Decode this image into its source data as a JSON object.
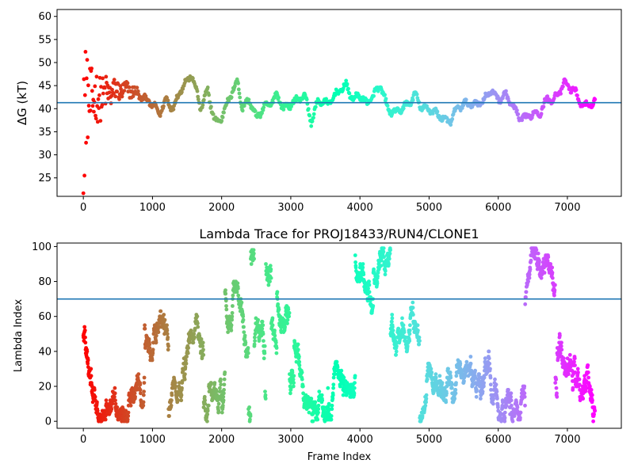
{
  "chart_data": [
    {
      "type": "scatter",
      "title": "",
      "xlabel": "",
      "ylabel": "ΔG (kT)",
      "xlim": [
        -380,
        7780
      ],
      "ylim": [
        21,
        61.5
      ],
      "xticks": [
        0,
        1000,
        2000,
        3000,
        4000,
        5000,
        6000,
        7000
      ],
      "yticks": [
        25,
        30,
        35,
        40,
        45,
        50,
        55,
        60
      ],
      "hline": 41.3,
      "colormap": "rainbow (red → violet over frame index)",
      "n_frames": 7400,
      "trace_anchors": [
        [
          0,
          41
        ],
        [
          150,
          42
        ],
        [
          300,
          43
        ],
        [
          500,
          44
        ],
        [
          700,
          44
        ],
        [
          800,
          43
        ],
        [
          900,
          42
        ],
        [
          1000,
          41
        ],
        [
          1100,
          39
        ],
        [
          1200,
          42
        ],
        [
          1300,
          40
        ],
        [
          1400,
          44
        ],
        [
          1500,
          46
        ],
        [
          1560,
          47.5
        ],
        [
          1650,
          43
        ],
        [
          1700,
          40
        ],
        [
          1800,
          44
        ],
        [
          1900,
          37
        ],
        [
          2000,
          38
        ],
        [
          2100,
          42
        ],
        [
          2200,
          45
        ],
        [
          2230,
          46
        ],
        [
          2300,
          40
        ],
        [
          2400,
          42
        ],
        [
          2500,
          38
        ],
        [
          2600,
          40
        ],
        [
          2700,
          41
        ],
        [
          2800,
          43
        ],
        [
          2900,
          40
        ],
        [
          3000,
          41
        ],
        [
          3100,
          42
        ],
        [
          3200,
          43
        ],
        [
          3300,
          37
        ],
        [
          3400,
          42
        ],
        [
          3500,
          41
        ],
        [
          3600,
          42
        ],
        [
          3700,
          44
        ],
        [
          3800,
          45
        ],
        [
          3900,
          42
        ],
        [
          4000,
          43
        ],
        [
          4100,
          41
        ],
        [
          4200,
          43
        ],
        [
          4300,
          45
        ],
        [
          4400,
          40
        ],
        [
          4500,
          39
        ],
        [
          4600,
          40
        ],
        [
          4700,
          41
        ],
        [
          4800,
          43
        ],
        [
          4900,
          40
        ],
        [
          5000,
          40
        ],
        [
          5100,
          39
        ],
        [
          5200,
          38
        ],
        [
          5300,
          37
        ],
        [
          5400,
          40
        ],
        [
          5500,
          41
        ],
        [
          5600,
          41
        ],
        [
          5700,
          41
        ],
        [
          5800,
          42
        ],
        [
          5900,
          44
        ],
        [
          6000,
          42
        ],
        [
          6100,
          43
        ],
        [
          6200,
          41
        ],
        [
          6300,
          38
        ],
        [
          6400,
          38
        ],
        [
          6500,
          39
        ],
        [
          6600,
          39
        ],
        [
          6700,
          42
        ],
        [
          6800,
          42
        ],
        [
          6900,
          44
        ],
        [
          6950,
          45.5
        ],
        [
          7100,
          44
        ],
        [
          7200,
          41
        ],
        [
          7300,
          40.5
        ],
        [
          7400,
          41.5
        ]
      ]
    },
    {
      "type": "scatter",
      "title": "Lambda Trace for PROJ18433/RUN4/CLONE1",
      "xlabel": "Frame Index",
      "ylabel": "Lambda Index",
      "xlim": [
        -380,
        7780
      ],
      "ylim": [
        -4,
        102
      ],
      "xticks": [
        0,
        1000,
        2000,
        3000,
        4000,
        5000,
        6000,
        7000
      ],
      "yticks": [
        0,
        20,
        40,
        60,
        80,
        100
      ],
      "hline": 70,
      "colormap": "rainbow (red → violet over frame index)",
      "n_frames": 7400,
      "value_range": [
        0,
        99
      ]
    }
  ]
}
